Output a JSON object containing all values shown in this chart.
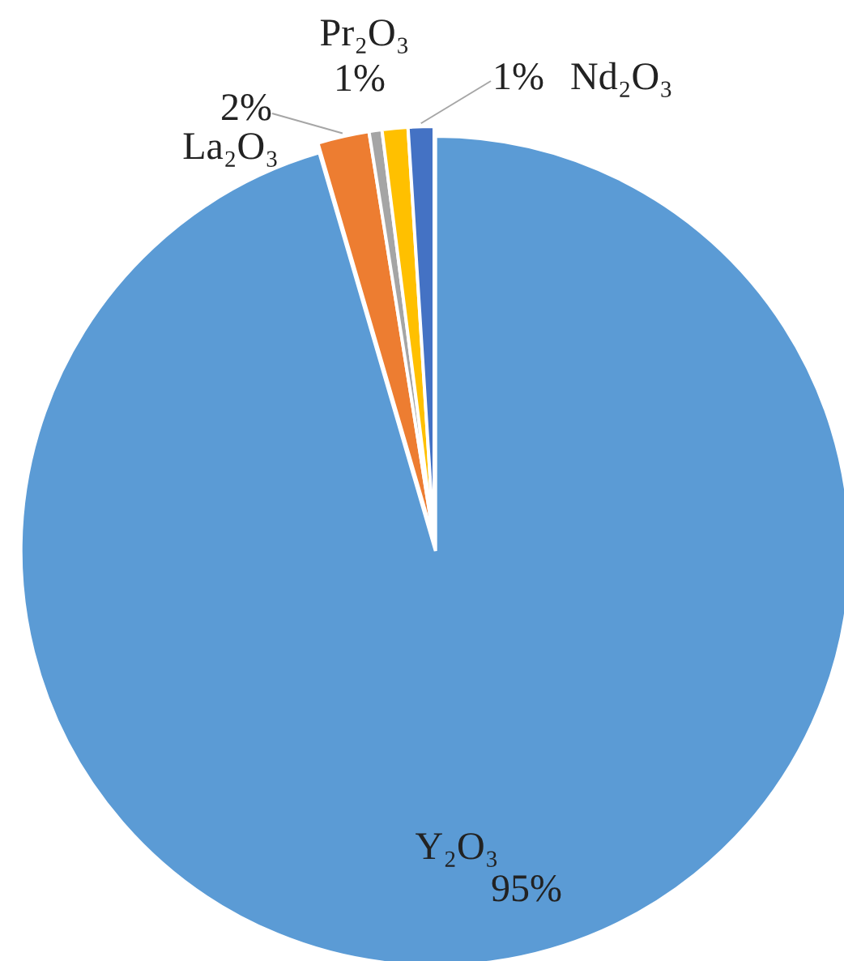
{
  "chart_data": {
    "type": "pie",
    "categories": [
      "Y₂O₃",
      "La₂O₃",
      null,
      "Pr₂O₃",
      "Nd₂O₃"
    ],
    "values": [
      95,
      2,
      0.5,
      1,
      1
    ],
    "value_labels": [
      "95%",
      "2%",
      null,
      "1%",
      "1%"
    ],
    "colors": [
      "#5b9bd5",
      "#ed7d31",
      "#a5a5a5",
      "#ffc000",
      "#4472c4"
    ]
  }
}
